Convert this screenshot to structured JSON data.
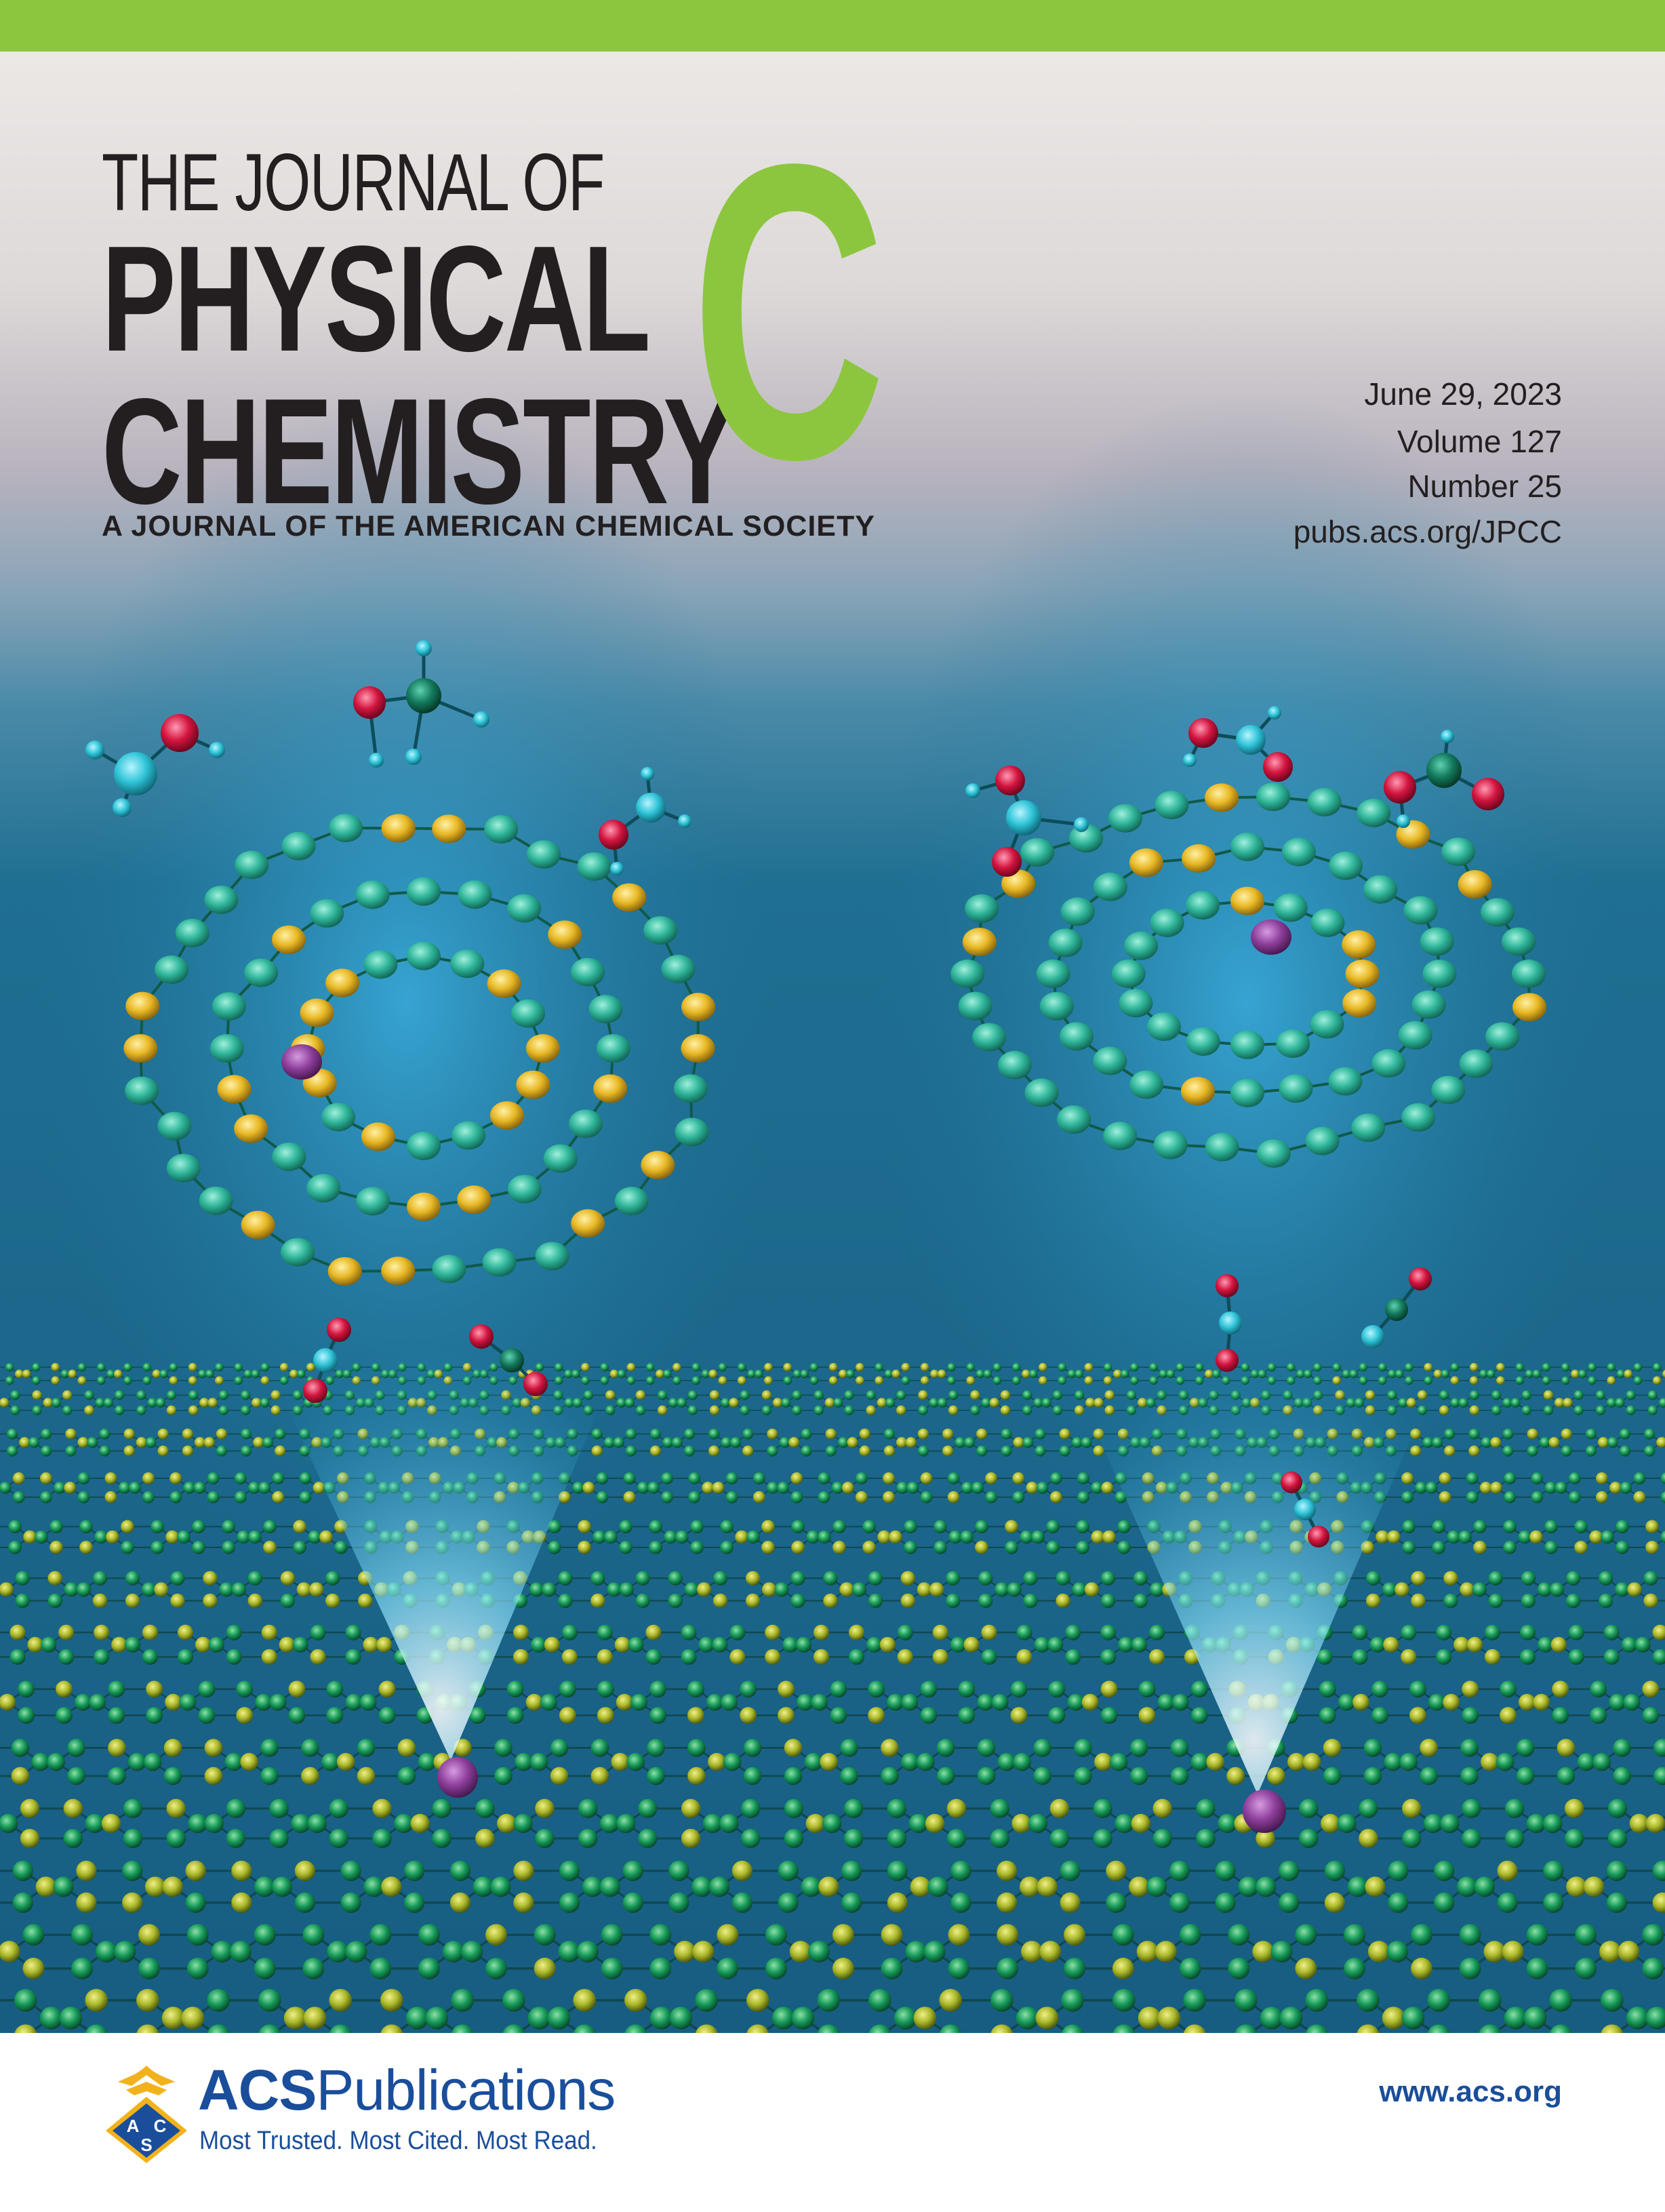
{
  "journal": {
    "title_line1": "THE JOURNAL OF",
    "title_line2": "PHYSICAL",
    "title_line3": "CHEMISTRY",
    "section_letter": "C",
    "subtitle": "A JOURNAL OF THE AMERICAN CHEMICAL SOCIETY"
  },
  "issue": {
    "date": "June 29, 2023",
    "volume": "Volume 127",
    "number": "Number 25",
    "url": "pubs.acs.org/JPCC"
  },
  "footer": {
    "publisher_bold": "ACS",
    "publisher_rest": "Publications",
    "tagline": "Most Trusted. Most Cited. Most Read.",
    "website": "www.acs.org",
    "logo_letters": [
      "A",
      "C",
      "S"
    ]
  },
  "colors": {
    "accent_green": "#8cc63f",
    "ink": "#231f20",
    "acs_blue": "#1a4e9b",
    "teal_atom": "#2fb59a",
    "gold_atom": "#e8b825",
    "purple_atom": "#8e3f9c",
    "red_atom": "#d3153f",
    "cyan_atom": "#2fc4d8"
  },
  "icons": {
    "logo": "acs-eagle-logo"
  }
}
